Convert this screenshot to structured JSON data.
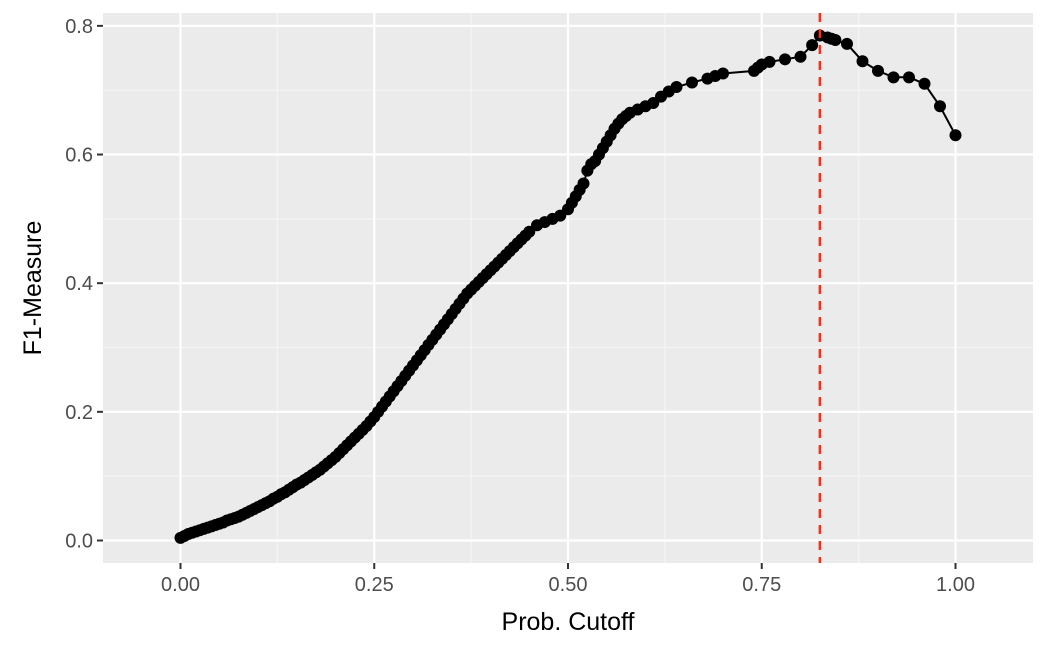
{
  "chart_data": {
    "type": "line",
    "title": "",
    "xlabel": "Prob. Cutoff",
    "ylabel": "F1-Measure",
    "xlim": [
      -0.1,
      1.1
    ],
    "ylim": [
      -0.035,
      0.82
    ],
    "x_ticks": [
      0.0,
      0.25,
      0.5,
      0.75,
      1.0
    ],
    "x_tick_labels": [
      "0.00",
      "0.25",
      "0.50",
      "0.75",
      "1.00"
    ],
    "y_ticks": [
      0.0,
      0.2,
      0.4,
      0.6,
      0.8
    ],
    "y_tick_labels": [
      "0.0",
      "0.2",
      "0.4",
      "0.6",
      "0.8"
    ],
    "grid": true,
    "legend": "none",
    "series": [
      {
        "x": [
          0.0,
          0.005,
          0.01,
          0.015,
          0.02,
          0.025,
          0.03,
          0.035,
          0.04,
          0.045,
          0.05,
          0.055,
          0.06,
          0.065,
          0.07,
          0.075,
          0.08,
          0.085,
          0.09,
          0.095,
          0.1,
          0.105,
          0.11,
          0.115,
          0.12,
          0.125,
          0.13,
          0.135,
          0.14,
          0.145,
          0.15,
          0.155,
          0.16,
          0.165,
          0.17,
          0.175,
          0.18,
          0.185,
          0.19,
          0.195,
          0.2,
          0.205,
          0.21,
          0.215,
          0.22,
          0.225,
          0.23,
          0.235,
          0.24,
          0.245,
          0.25,
          0.255,
          0.26,
          0.265,
          0.27,
          0.275,
          0.28,
          0.285,
          0.29,
          0.295,
          0.3,
          0.305,
          0.31,
          0.315,
          0.32,
          0.325,
          0.33,
          0.335,
          0.34,
          0.345,
          0.35,
          0.355,
          0.36,
          0.365,
          0.37,
          0.375,
          0.38,
          0.385,
          0.39,
          0.395,
          0.4,
          0.405,
          0.41,
          0.415,
          0.42,
          0.425,
          0.43,
          0.435,
          0.44,
          0.445,
          0.45,
          0.46,
          0.47,
          0.48,
          0.49,
          0.5,
          0.505,
          0.51,
          0.515,
          0.52,
          0.525,
          0.53,
          0.535,
          0.54,
          0.545,
          0.55,
          0.555,
          0.56,
          0.565,
          0.57,
          0.575,
          0.58,
          0.59,
          0.6,
          0.61,
          0.62,
          0.63,
          0.64,
          0.66,
          0.68,
          0.69,
          0.7,
          0.74,
          0.745,
          0.75,
          0.76,
          0.78,
          0.8,
          0.815,
          0.825,
          0.835,
          0.84,
          0.845,
          0.86,
          0.88,
          0.9,
          0.92,
          0.94,
          0.96,
          0.98,
          1.0
        ],
        "values": [
          0.004,
          0.007,
          0.01,
          0.012,
          0.014,
          0.016,
          0.018,
          0.02,
          0.022,
          0.024,
          0.026,
          0.028,
          0.031,
          0.033,
          0.035,
          0.037,
          0.04,
          0.043,
          0.046,
          0.049,
          0.052,
          0.055,
          0.058,
          0.061,
          0.065,
          0.068,
          0.072,
          0.075,
          0.079,
          0.083,
          0.087,
          0.09,
          0.094,
          0.098,
          0.102,
          0.106,
          0.11,
          0.115,
          0.12,
          0.125,
          0.13,
          0.136,
          0.142,
          0.148,
          0.154,
          0.16,
          0.166,
          0.172,
          0.178,
          0.185,
          0.192,
          0.2,
          0.208,
          0.216,
          0.224,
          0.232,
          0.24,
          0.248,
          0.256,
          0.264,
          0.272,
          0.28,
          0.288,
          0.296,
          0.304,
          0.312,
          0.32,
          0.328,
          0.336,
          0.344,
          0.352,
          0.36,
          0.368,
          0.376,
          0.384,
          0.39,
          0.396,
          0.402,
          0.408,
          0.414,
          0.42,
          0.426,
          0.432,
          0.438,
          0.444,
          0.45,
          0.456,
          0.462,
          0.468,
          0.474,
          0.48,
          0.49,
          0.495,
          0.5,
          0.505,
          0.515,
          0.525,
          0.535,
          0.545,
          0.555,
          0.575,
          0.585,
          0.59,
          0.6,
          0.61,
          0.62,
          0.63,
          0.64,
          0.648,
          0.655,
          0.66,
          0.665,
          0.67,
          0.675,
          0.68,
          0.69,
          0.698,
          0.705,
          0.712,
          0.718,
          0.722,
          0.726,
          0.73,
          0.735,
          0.74,
          0.744,
          0.748,
          0.752,
          0.77,
          0.785,
          0.782,
          0.78,
          0.778,
          0.772,
          0.745,
          0.73,
          0.72,
          0.72,
          0.71,
          0.675,
          0.63
        ]
      }
    ],
    "reference_line": {
      "orientation": "vertical",
      "x": 0.825,
      "style": "dashed",
      "color": "#ff2a1a"
    },
    "colors": {
      "panel_background": "#ebebeb",
      "grid_major": "#ffffff",
      "grid_minor": "#f5f5f5",
      "line": "#000000",
      "points": "#000000",
      "tick_label": "#4d4d4d",
      "axis_title": "#000000"
    }
  }
}
